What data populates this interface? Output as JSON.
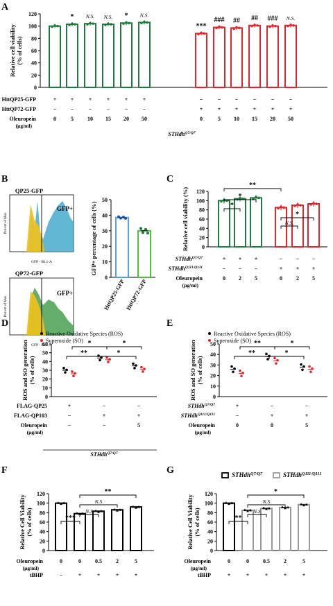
{
  "colors": {
    "green": "#1f7a3f",
    "red": "#e0262b",
    "blue": "#5aa0d8",
    "green2": "#4fbe3c",
    "black": "#000000",
    "gray": "#9a9a9a"
  },
  "panels": {
    "A": {
      "letter": "A"
    },
    "B": {
      "letter": "B",
      "flow_top": {
        "title": "QP25-GFP",
        "gate": "GFP+",
        "ylabel": "Percent of Max",
        "xlabel": "GFP - BL1-A"
      },
      "flow_bottom": {
        "title": "QP72-GFP",
        "gate": "GFP+",
        "ylabel": "Percent of Max",
        "xlabel": "GFP - BL1-A"
      }
    },
    "C": {
      "letter": "C"
    },
    "D": {
      "letter": "D"
    },
    "E": {
      "letter": "E"
    },
    "F": {
      "letter": "F"
    },
    "G": {
      "letter": "G"
    }
  },
  "chart_data": [
    {
      "id": "A",
      "type": "bar",
      "ylabel": "Relative cell viability (% of cells)",
      "ylim": [
        0,
        120
      ],
      "yticks": [
        0,
        20,
        40,
        60,
        80,
        100,
        120
      ],
      "values": [
        100,
        103,
        104,
        103,
        105,
        106,
        88,
        98,
        97,
        101,
        100,
        101
      ],
      "bar_colors": [
        "green",
        "green",
        "green",
        "green",
        "green",
        "green",
        "red",
        "red",
        "red",
        "red",
        "red",
        "red"
      ],
      "annotations": [
        "",
        "*",
        "N.S.",
        "N.S.",
        "*",
        "N.S.",
        "***",
        "###",
        "##",
        "##",
        "###",
        "N.S."
      ],
      "rows": [
        {
          "label": "HttQP25-GFP",
          "cells": [
            "+",
            "+",
            "+",
            "+",
            "+",
            "+",
            "−",
            "−",
            "−",
            "−",
            "−",
            "−"
          ]
        },
        {
          "label": "HttQP72-GFP",
          "cells": [
            "−",
            "−",
            "−",
            "−",
            "−",
            "−",
            "+",
            "+",
            "+",
            "+",
            "+",
            "+"
          ]
        },
        {
          "label": "Oleuropein",
          "label2": "(μg/ml)",
          "cells": [
            "0",
            "5",
            "10",
            "15",
            "20",
            "50",
            "0",
            "5",
            "10",
            "15",
            "20",
            "50"
          ]
        }
      ],
      "footer": "STHdhQ7/Q7"
    },
    {
      "id": "B",
      "type": "bar",
      "ylabel": "GFP+ percentage of cells (%)",
      "ylim": [
        0,
        50
      ],
      "yticks": [
        0,
        10,
        20,
        30,
        40,
        50
      ],
      "categories": [
        "HttQP25-GFP",
        "HttQP72-GFP"
      ],
      "values": [
        38.5,
        30
      ]
    },
    {
      "id": "C",
      "type": "bar",
      "ylabel": "Relative cell viability (%)",
      "ylim": [
        0,
        120
      ],
      "yticks": [
        0,
        20,
        40,
        60,
        80,
        100,
        120
      ],
      "values": [
        100,
        104,
        106,
        85,
        90,
        93
      ],
      "bar_colors": [
        "green",
        "green",
        "green",
        "red",
        "red",
        "red"
      ],
      "brackets": [
        {
          "from": 0,
          "to": 1,
          "label": "*"
        },
        {
          "from": 0,
          "to": 2,
          "label": "*"
        },
        {
          "from": 0,
          "to": 3,
          "label": "**"
        },
        {
          "from": 3,
          "to": 4,
          "label": "N.S."
        },
        {
          "from": 3,
          "to": 5,
          "label": "*"
        }
      ],
      "rows": [
        {
          "label": "STHdhQ7/Q7",
          "cells": [
            "+",
            "+",
            "+",
            "−",
            "−",
            "−"
          ]
        },
        {
          "label": "STHdhQ111/Q111",
          "cells": [
            "−",
            "−",
            "−",
            "+",
            "+",
            "+"
          ]
        },
        {
          "label": "Oleuropein",
          "label2": "(μg/ml)",
          "cells": [
            "0",
            "2",
            "5",
            "0",
            "2",
            "5"
          ]
        }
      ]
    },
    {
      "id": "D",
      "type": "scatter",
      "legend": [
        "Reactive Oxidative Species (ROS)",
        "Superoxide (SO)"
      ],
      "ylabel": "ROS and SO generation (% of cells)",
      "ylim": [
        0,
        60
      ],
      "yticks": [
        0,
        10,
        20,
        30,
        40,
        50,
        60
      ],
      "groups": [
        {
          "ros": 30,
          "so": 26
        },
        {
          "ros": 44,
          "so": 42
        },
        {
          "ros": 35,
          "so": 31
        }
      ],
      "brackets": [
        {
          "from": 0,
          "to": 1,
          "label": "**"
        },
        {
          "from": 0,
          "to": 1,
          "label": "*"
        },
        {
          "from": 1,
          "to": 2,
          "label": "*"
        },
        {
          "from": 1,
          "to": 2,
          "label": "*"
        }
      ],
      "rows": [
        {
          "label": "FLAG-QP25",
          "cells": [
            "+",
            "−",
            "−"
          ]
        },
        {
          "label": "FLAG-QP103",
          "cells": [
            "−",
            "+",
            "+"
          ]
        },
        {
          "label": "Oleuropein",
          "label2": "(μg/ml)",
          "cells": [
            "−",
            "−",
            "5"
          ]
        }
      ],
      "footer": "STHdhQ7/Q7"
    },
    {
      "id": "E",
      "type": "scatter",
      "legend": [
        "Reactive Oxidative Species (ROS)",
        "Superoxide (SO)"
      ],
      "ylabel": "ROS and SO generation (% of cells)",
      "ylim": [
        0,
        50
      ],
      "yticks": [
        0,
        10,
        20,
        30,
        40,
        50
      ],
      "groups": [
        {
          "ros": 26,
          "so": 22
        },
        {
          "ros": 38,
          "so": 34
        },
        {
          "ros": 28,
          "so": 26
        }
      ],
      "brackets": [
        {
          "from": 0,
          "to": 1,
          "label": "**"
        },
        {
          "from": 0,
          "to": 1,
          "label": "**"
        },
        {
          "from": 1,
          "to": 2,
          "label": "*"
        },
        {
          "from": 1,
          "to": 2,
          "label": "*"
        }
      ],
      "rows": [
        {
          "label": "STHdhQ7/Q7",
          "cells": [
            "+",
            "−",
            "−"
          ]
        },
        {
          "label": "STHdhQ111/Q111",
          "cells": [
            "−",
            "+",
            "+"
          ]
        },
        {
          "label": "Oleuropein",
          "label2": "(μg/ml)",
          "cells": [
            "0",
            "0",
            "5"
          ]
        }
      ]
    },
    {
      "id": "F",
      "type": "bar",
      "ylabel": "Relative Cell Viability (% of cells)",
      "ylim": [
        0,
        120
      ],
      "yticks": [
        0,
        20,
        40,
        60,
        80,
        100,
        120
      ],
      "values": [
        100,
        78,
        83,
        86,
        92
      ],
      "brackets": [
        {
          "from": 0,
          "to": 1,
          "label": "***"
        },
        {
          "from": 1,
          "to": 2,
          "label": "N.S"
        },
        {
          "from": 1,
          "to": 3,
          "label": "N.S"
        },
        {
          "from": 1,
          "to": 4,
          "label": "**"
        }
      ],
      "rows": [
        {
          "label": "Oleuropein",
          "label2": "(μg/ml)",
          "cells": [
            "0",
            "0",
            "0.5",
            "2",
            "5"
          ]
        },
        {
          "label": "tBHP",
          "cells": [
            "−",
            "+",
            "+",
            "+",
            "+"
          ]
        }
      ]
    },
    {
      "id": "G",
      "type": "bar",
      "legend": [
        "STHdhQ7/Q7",
        "STHdhQ111/Q111"
      ],
      "ylabel": "Relative Cell Viability (% of cells)",
      "ylim": [
        0,
        120
      ],
      "yticks": [
        0,
        20,
        40,
        60,
        80,
        100,
        120
      ],
      "values": [
        100,
        85,
        89,
        91,
        97
      ],
      "bar_colors": [
        "black",
        "gray",
        "gray",
        "gray",
        "gray"
      ],
      "brackets": [
        {
          "from": 0,
          "to": 1,
          "label": "**"
        },
        {
          "from": 1,
          "to": 2,
          "label": "N.S"
        },
        {
          "from": 1,
          "to": 3,
          "label": "N.S"
        },
        {
          "from": 1,
          "to": 4,
          "label": "*"
        }
      ],
      "rows": [
        {
          "label": "Oleuropein",
          "label2": "(μg/ml)",
          "cells": [
            "0",
            "0",
            "0.5",
            "2",
            "5"
          ]
        },
        {
          "label": "tBHP",
          "cells": [
            "+",
            "+",
            "+",
            "+",
            "+"
          ]
        }
      ]
    }
  ]
}
